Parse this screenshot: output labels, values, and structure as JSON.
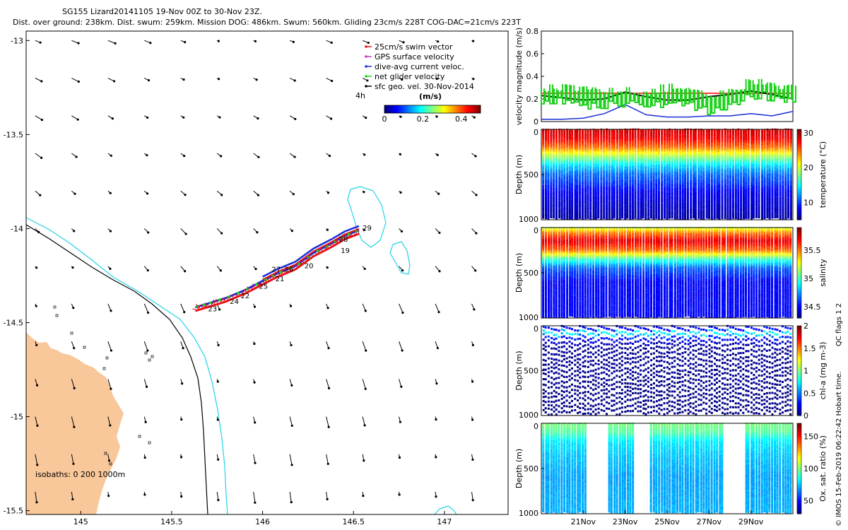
{
  "header": {
    "line1": "SG155 Lizard20141105 19-Nov 00Z to 30-Nov 23Z.",
    "line2": "Dist. over ground: 238km. Dist. swum: 259km. Mission DOG: 486km. Swum: 560km. Gliding 23cm/s 228T COG-DAC=21cm/s 223T"
  },
  "colors": {
    "land": "#f8c79a",
    "isobath200": "#000000",
    "isobath1000": "#22d3e8",
    "swim": "#e8121b",
    "gps": "#cc33cc",
    "dac": "#1a2ed6",
    "net": "#1ad01a",
    "sfc": "#000000",
    "mag_red": "#ff0000",
    "mag_black": "#000000",
    "mag_blue": "#1a2ed6",
    "mag_green": "#1ad01a"
  },
  "map": {
    "xlim": [
      144.7,
      147.35
    ],
    "ylim": [
      -15.52,
      -12.95
    ],
    "xticks": [
      145,
      145.5,
      146,
      146.5,
      147
    ],
    "xtick_labels": [
      "145",
      "145.5",
      "146",
      "146.5",
      "147"
    ],
    "yticks": [
      -13,
      -13.5,
      -14,
      -14.5,
      -15,
      -15.5
    ],
    "ytick_labels": [
      "-13",
      "-13.5",
      "-14",
      "-14.5",
      "-15",
      "-15.5"
    ],
    "isobath_label": "isobaths: 0   200  1000m",
    "legend": [
      {
        "label": "25cm/s swim vector",
        "color": "#e8121b"
      },
      {
        "label": "GPS surface velocity",
        "color": "#cc33cc"
      },
      {
        "label": "dive-avg current veloc.",
        "color": "#1a2ed6"
      },
      {
        "label": "net glider velocity",
        "color": "#1ad01a"
      },
      {
        "label": "sfc geo. vel. 30-Nov-2014",
        "color": "#000000"
      }
    ],
    "legend_4h": "4h",
    "colorbar": {
      "title": "(m/s)",
      "ticks": [
        "0",
        "0.2",
        "0.4"
      ],
      "tick_values": [
        0,
        0.2,
        0.4
      ],
      "max": 0.5
    },
    "track": {
      "lon": [
        145.63,
        145.7,
        145.8,
        145.9,
        146.0,
        146.08,
        146.18,
        146.28,
        146.38,
        146.45,
        146.53
      ],
      "lat": [
        -14.43,
        -14.41,
        -14.38,
        -14.34,
        -14.29,
        -14.25,
        -14.21,
        -14.14,
        -14.09,
        -14.05,
        -14.02
      ]
    },
    "day_labels": [
      {
        "text": "29",
        "lon": 146.55,
        "lat": -14.01
      },
      {
        "text": "28",
        "lon": 146.42,
        "lat": -14.07
      },
      {
        "text": "19",
        "lon": 146.43,
        "lat": -14.13
      },
      {
        "text": "20",
        "lon": 146.23,
        "lat": -14.21
      },
      {
        "text": "27",
        "lon": 146.05,
        "lat": -14.23
      },
      {
        "text": "26",
        "lon": 146.12,
        "lat": -14.23
      },
      {
        "text": "21",
        "lon": 146.07,
        "lat": -14.28
      },
      {
        "text": "25",
        "lon": 145.98,
        "lat": -14.32
      },
      {
        "text": "22",
        "lon": 145.88,
        "lat": -14.37
      },
      {
        "text": "24",
        "lon": 145.82,
        "lat": -14.4
      },
      {
        "text": "23",
        "lon": 145.7,
        "lat": -14.44
      }
    ],
    "vector_grid": {
      "lon_start": 144.75,
      "lon_step": 0.2,
      "lat_start": -13.0,
      "lat_step": -0.2
    }
  },
  "chart_data": [
    {
      "type": "line",
      "title": "velocity magnitude",
      "ylabel": "velocity magnitude (m/s)",
      "ylim": [
        0,
        0.8
      ],
      "yticks": [
        0,
        0.2,
        0.4,
        0.6,
        0.8
      ],
      "ytick_labels": [
        "0",
        "0.2",
        "0.4",
        "0.6",
        "0.8"
      ],
      "xlim": [
        19,
        31
      ],
      "series": [
        {
          "name": "swim",
          "color": "#ff0000",
          "x": [
            19,
            31
          ],
          "values": [
            0.25,
            0.25
          ]
        },
        {
          "name": "net",
          "color": "#000000",
          "x": [
            19,
            20,
            21,
            22,
            23,
            24,
            25,
            26,
            27,
            28,
            29,
            30,
            31
          ],
          "values": [
            0.23,
            0.21,
            0.19,
            0.2,
            0.26,
            0.22,
            0.19,
            0.19,
            0.22,
            0.24,
            0.27,
            0.24,
            0.2
          ]
        },
        {
          "name": "dac",
          "color": "#1a2ed6",
          "x": [
            19,
            20,
            21,
            22,
            23,
            24,
            25,
            26,
            27,
            28,
            29,
            30,
            31
          ],
          "values": [
            0.02,
            0.02,
            0.03,
            0.07,
            0.15,
            0.06,
            0.04,
            0.04,
            0.05,
            0.05,
            0.07,
            0.05,
            0.09
          ]
        },
        {
          "name": "gps",
          "color": "#1ad01a",
          "x": [
            19,
            20,
            21,
            22,
            23,
            24,
            25,
            26,
            27,
            28,
            29,
            30,
            31
          ],
          "values": [
            0.27,
            0.26,
            0.24,
            0.22,
            0.26,
            0.2,
            0.27,
            0.23,
            0.18,
            0.22,
            0.33,
            0.3,
            0.26
          ]
        }
      ]
    },
    {
      "type": "heatmap",
      "ylabel": "Depth (m)",
      "cbar_label": "temperature (°C)",
      "ylim": [
        0,
        1000
      ],
      "yticks": [
        0,
        500,
        1000
      ],
      "clim": [
        5,
        31
      ],
      "cticks": [
        "10",
        "20",
        "30"
      ],
      "ctick_values": [
        10,
        20,
        30
      ],
      "profile": [
        [
          0,
          29
        ],
        [
          100,
          28
        ],
        [
          200,
          25
        ],
        [
          300,
          19
        ],
        [
          400,
          14
        ],
        [
          500,
          11
        ],
        [
          700,
          8
        ],
        [
          1000,
          6
        ]
      ]
    },
    {
      "type": "heatmap",
      "ylabel": "Depth (m)",
      "cbar_label": "salinity",
      "ylim": [
        0,
        1000
      ],
      "yticks": [
        0,
        500,
        1000
      ],
      "clim": [
        34.3,
        35.9
      ],
      "cticks": [
        "34.5",
        "35",
        "35.5"
      ],
      "ctick_values": [
        34.5,
        35,
        35.5
      ],
      "profile": [
        [
          0,
          35.2
        ],
        [
          60,
          35.5
        ],
        [
          150,
          35.75
        ],
        [
          250,
          35.55
        ],
        [
          350,
          35.0
        ],
        [
          450,
          34.65
        ],
        [
          600,
          34.5
        ],
        [
          1000,
          34.5
        ]
      ]
    },
    {
      "type": "scatter",
      "ylabel": "Depth (m)",
      "cbar_label": "chl-a (mg m-3)",
      "ylim": [
        0,
        1000
      ],
      "yticks": [
        0,
        500,
        1000
      ],
      "clim": [
        0,
        2
      ],
      "cticks": [
        "0",
        "0.5",
        "1",
        "1.5",
        "2"
      ],
      "ctick_values": [
        0,
        0.5,
        1,
        1.5,
        2
      ],
      "profile": [
        [
          0,
          0.2
        ],
        [
          60,
          0.8
        ],
        [
          110,
          0.3
        ],
        [
          200,
          0.05
        ],
        [
          1000,
          0.0
        ]
      ]
    },
    {
      "type": "scatter",
      "ylabel": "Depth (m)",
      "cbar_label": "Ox. sat. ratio (%)",
      "ylim": [
        0,
        1000
      ],
      "yticks": [
        0,
        500,
        1000
      ],
      "clim": [
        30,
        170
      ],
      "cticks": [
        "50",
        "100",
        "150"
      ],
      "ctick_values": [
        50,
        100,
        150
      ],
      "xticks": [
        21,
        23,
        25,
        27,
        29
      ],
      "xtick_labels": [
        "21Nov",
        "23Nov",
        "25Nov",
        "27Nov",
        "29Nov"
      ],
      "profile": [
        [
          0,
          100
        ],
        [
          100,
          95
        ],
        [
          200,
          80
        ],
        [
          350,
          75
        ],
        [
          600,
          70
        ],
        [
          1000,
          72
        ]
      ]
    }
  ],
  "side_note": "QC flags 1  2",
  "footer": "© IMOS 15-Feb-2019 06:22:42 Hobart time."
}
